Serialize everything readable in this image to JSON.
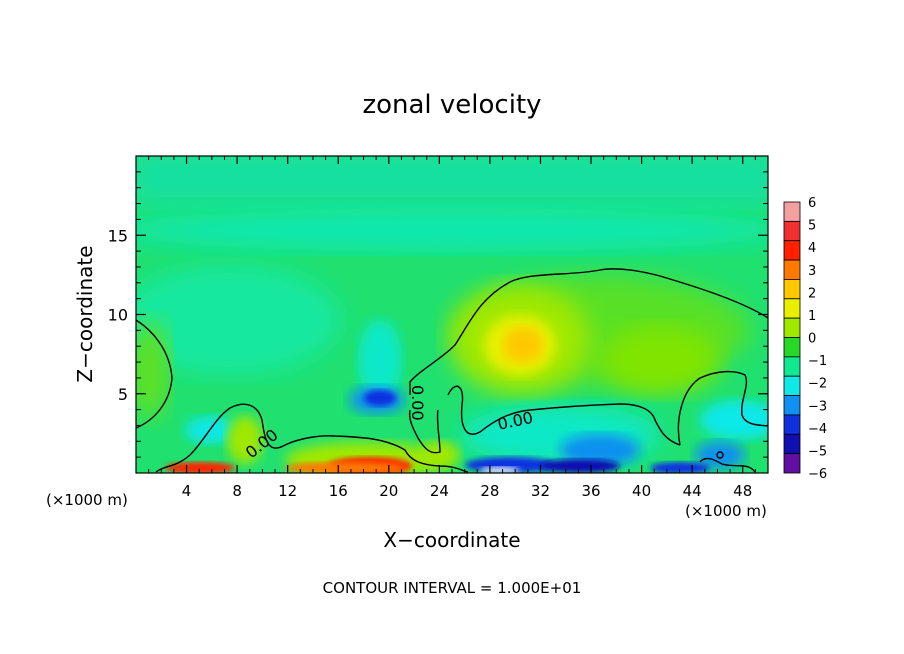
{
  "chart_data": {
    "type": "heatmap",
    "title": "zonal velocity",
    "xlabel": "X−coordinate",
    "ylabel": "Z−coordinate",
    "x_unit": "(×1000 m)",
    "x_unit_right": "(×1000 m)",
    "xlim": [
      0,
      50
    ],
    "ylim": [
      0,
      20
    ],
    "x_ticks": [
      4,
      8,
      12,
      16,
      20,
      24,
      28,
      32,
      36,
      40,
      44,
      48
    ],
    "y_ticks": [
      5,
      10,
      15
    ],
    "colorbar": {
      "min": -6,
      "max": 6,
      "labels": [
        "6",
        "5",
        "4",
        "3",
        "2",
        "1",
        "0",
        "−1",
        "−2",
        "−3",
        "−4",
        "−5",
        "−6"
      ],
      "colors": [
        "#f4a0a0",
        "#f03030",
        "#ff2000",
        "#ff7800",
        "#ffc800",
        "#e8f000",
        "#a0e800",
        "#28d828",
        "#10e890",
        "#10e8e8",
        "#1090f0",
        "#1030e0",
        "#1010b0",
        "#6010a0"
      ]
    },
    "contour_label": "0.00",
    "footer": "CONTOUR INTERVAL = 1.000E+01",
    "features": [
      {
        "x": 30.5,
        "z": 8.2,
        "value": 2.6
      },
      {
        "x": 27.5,
        "z": 9.0,
        "value": 1.4
      },
      {
        "x": 36.0,
        "z": 7.5,
        "value": 1.0
      },
      {
        "x": 40.0,
        "z": 8.0,
        "value": 0.8
      },
      {
        "x": 19.0,
        "z": 4.7,
        "value": -4.5
      },
      {
        "x": 20.0,
        "z": 6.5,
        "value": -1.6
      },
      {
        "x": 9.0,
        "z": 1.8,
        "value": 1.3
      },
      {
        "x": 18.5,
        "z": 0.6,
        "value": 4.5
      },
      {
        "x": 6.0,
        "z": 0.3,
        "value": 4.0
      },
      {
        "x": 4.5,
        "z": 3.0,
        "value": -2.5
      },
      {
        "x": 35.0,
        "z": 1.5,
        "value": -3.0
      },
      {
        "x": 29.0,
        "z": 0.4,
        "value": -5.0
      },
      {
        "x": 46.5,
        "z": 2.0,
        "value": -3.2
      },
      {
        "x": 49.0,
        "z": 3.8,
        "value": -1.9
      }
    ]
  }
}
